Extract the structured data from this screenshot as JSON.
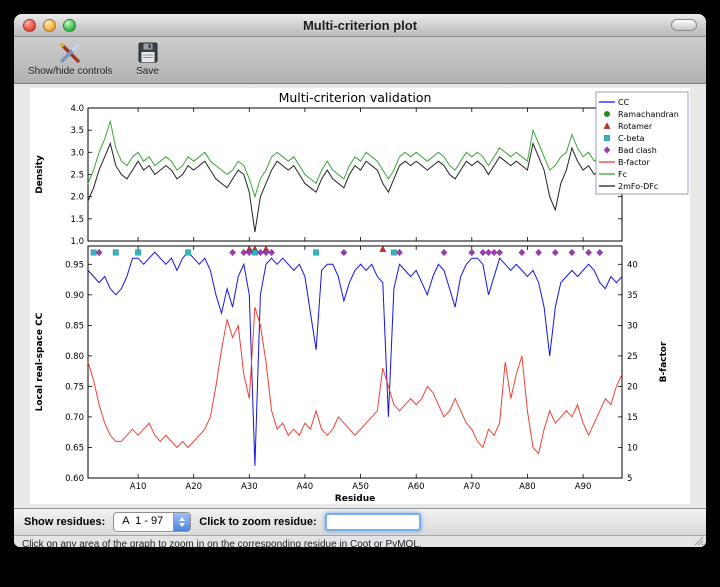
{
  "window": {
    "title": "Multi-criterion plot"
  },
  "toolbar": {
    "buttons": [
      {
        "label": "Show/hide controls",
        "icon": "tools-icon"
      },
      {
        "label": "Save",
        "icon": "save-icon"
      }
    ]
  },
  "controls": {
    "show_residues_label": "Show residues:",
    "residue_range_value": "A  1 - 97",
    "zoom_label": "Click to zoom residue:",
    "zoom_input_value": ""
  },
  "status_bar": "Click on any area of the graph to zoom in on the corresponding residue in Coot or PyMOL.",
  "chart_data": {
    "type": "line",
    "title": "Multi-criterion validation",
    "xlabel": "Residue",
    "x_range": [
      1,
      97
    ],
    "x_tick_residues": [
      10,
      20,
      30,
      40,
      50,
      60,
      70,
      80,
      90
    ],
    "x_ticks": [
      "A10",
      "A20",
      "A30",
      "A40",
      "A50",
      "A60",
      "A70",
      "A80",
      "A90"
    ],
    "grid": false,
    "legend_position": "upper right",
    "legend": [
      {
        "label": "CC",
        "type": "line",
        "color": "#1414e0"
      },
      {
        "label": "Ramachandran",
        "type": "circle",
        "color": "#1e8c1e"
      },
      {
        "label": "Rotamer",
        "type": "triangle",
        "color": "#cc2a1e"
      },
      {
        "label": "C-beta",
        "type": "square",
        "color": "#2fb6c0"
      },
      {
        "label": "Bad clash",
        "type": "diamond",
        "color": "#993cb5"
      },
      {
        "label": "B-factor",
        "type": "line",
        "color": "#ef4135"
      },
      {
        "label": "Fc",
        "type": "line",
        "color": "#3ca53c"
      },
      {
        "label": "2mFo-DFc",
        "type": "line",
        "color": "#222222"
      }
    ],
    "top_plot": {
      "ylabel": "Density",
      "ylim": [
        1.0,
        4.0
      ],
      "yticks": [
        1.0,
        1.5,
        2.0,
        2.5,
        3.0,
        3.5,
        4.0
      ],
      "series": [
        {
          "name": "Fc",
          "color": "#3ca53c",
          "values": [
            2.3,
            2.6,
            3.0,
            3.3,
            3.7,
            3.1,
            2.8,
            2.7,
            2.9,
            3.0,
            2.8,
            2.9,
            2.7,
            2.8,
            2.9,
            2.8,
            2.6,
            2.7,
            2.9,
            2.8,
            2.9,
            3.0,
            2.8,
            2.7,
            2.6,
            2.5,
            2.6,
            2.8,
            2.7,
            2.4,
            2.0,
            2.4,
            2.6,
            2.9,
            3.0,
            2.9,
            2.8,
            2.9,
            2.7,
            2.5,
            2.4,
            2.3,
            2.6,
            2.8,
            2.6,
            2.5,
            2.4,
            2.7,
            2.9,
            2.8,
            3.0,
            2.9,
            2.8,
            2.6,
            2.4,
            2.6,
            2.9,
            3.0,
            2.9,
            3.0,
            2.9,
            2.8,
            2.9,
            3.0,
            2.9,
            2.7,
            2.6,
            2.8,
            3.0,
            2.9,
            3.0,
            2.9,
            2.7,
            2.9,
            3.1,
            3.0,
            2.9,
            3.0,
            2.9,
            2.8,
            3.5,
            3.2,
            2.9,
            2.6,
            2.7,
            2.9,
            3.0,
            3.4,
            3.1,
            2.9,
            3.0,
            2.8,
            2.9,
            2.5,
            2.8,
            3.3,
            3.2
          ]
        },
        {
          "name": "2mFo-DFc",
          "color": "#222222",
          "values": [
            1.9,
            2.2,
            2.6,
            2.9,
            3.2,
            2.7,
            2.5,
            2.4,
            2.6,
            2.8,
            2.6,
            2.7,
            2.5,
            2.6,
            2.7,
            2.6,
            2.4,
            2.5,
            2.7,
            2.6,
            2.7,
            2.8,
            2.6,
            2.4,
            2.3,
            2.2,
            2.4,
            2.6,
            2.5,
            2.1,
            1.2,
            2.0,
            2.3,
            2.6,
            2.8,
            2.7,
            2.6,
            2.7,
            2.5,
            2.3,
            2.2,
            2.1,
            2.4,
            2.6,
            2.4,
            2.3,
            2.2,
            2.5,
            2.7,
            2.6,
            2.8,
            2.7,
            2.6,
            2.3,
            2.1,
            2.4,
            2.7,
            2.8,
            2.7,
            2.8,
            2.7,
            2.6,
            2.7,
            2.8,
            2.7,
            2.5,
            2.4,
            2.6,
            2.8,
            2.7,
            2.8,
            2.7,
            2.5,
            2.7,
            2.9,
            2.8,
            2.7,
            2.8,
            2.7,
            2.6,
            3.2,
            2.9,
            2.6,
            2.0,
            1.7,
            2.3,
            2.6,
            3.1,
            2.8,
            2.6,
            2.7,
            2.5,
            2.6,
            2.2,
            2.5,
            3.0,
            2.9
          ]
        }
      ]
    },
    "bottom_plot": {
      "ylabel_left": "Local real-space CC",
      "ylabel_right": "B-factor",
      "ylim_left": [
        0.6,
        0.98
      ],
      "yticks_left": [
        0.6,
        0.65,
        0.7,
        0.75,
        0.8,
        0.85,
        0.9,
        0.95
      ],
      "ylim_right": [
        5,
        43
      ],
      "yticks_right": [
        5,
        10,
        15,
        20,
        25,
        30,
        35,
        40
      ],
      "series": [
        {
          "name": "CC",
          "axis": "left",
          "color": "#1414e0",
          "values": [
            0.94,
            0.93,
            0.92,
            0.93,
            0.91,
            0.9,
            0.91,
            0.93,
            0.96,
            0.96,
            0.95,
            0.96,
            0.97,
            0.96,
            0.95,
            0.96,
            0.94,
            0.96,
            0.97,
            0.96,
            0.95,
            0.96,
            0.94,
            0.9,
            0.87,
            0.91,
            0.88,
            0.93,
            0.95,
            0.9,
            0.62,
            0.9,
            0.95,
            0.96,
            0.95,
            0.96,
            0.95,
            0.94,
            0.95,
            0.93,
            0.87,
            0.81,
            0.94,
            0.95,
            0.95,
            0.93,
            0.89,
            0.92,
            0.94,
            0.95,
            0.94,
            0.95,
            0.93,
            0.92,
            0.7,
            0.91,
            0.95,
            0.94,
            0.93,
            0.94,
            0.92,
            0.9,
            0.93,
            0.95,
            0.94,
            0.91,
            0.88,
            0.93,
            0.95,
            0.96,
            0.96,
            0.95,
            0.9,
            0.93,
            0.96,
            0.95,
            0.94,
            0.95,
            0.94,
            0.93,
            0.94,
            0.92,
            0.88,
            0.8,
            0.88,
            0.92,
            0.93,
            0.94,
            0.93,
            0.94,
            0.95,
            0.94,
            0.92,
            0.91,
            0.93,
            0.92,
            0.93
          ]
        },
        {
          "name": "B-factor",
          "axis": "right",
          "color": "#ef4135",
          "values": [
            24,
            21,
            17,
            14,
            12,
            11,
            11,
            12,
            13,
            12,
            13,
            14,
            12,
            11,
            12,
            11,
            10,
            11,
            10,
            11,
            12,
            13,
            15,
            20,
            26,
            31,
            28,
            30,
            22,
            18,
            33,
            30,
            24,
            16,
            13,
            14,
            12,
            13,
            12,
            14,
            13,
            16,
            13,
            12,
            13,
            15,
            14,
            13,
            12,
            13,
            14,
            15,
            16,
            23,
            20,
            17,
            16,
            17,
            18,
            17,
            18,
            20,
            19,
            17,
            15,
            16,
            18,
            16,
            14,
            13,
            11,
            10,
            13,
            12,
            14,
            24,
            18,
            22,
            25,
            16,
            10,
            9,
            13,
            16,
            14,
            15,
            16,
            15,
            17,
            14,
            12,
            14,
            16,
            18,
            17,
            20,
            22
          ]
        }
      ],
      "markers": [
        {
          "name": "Ramachandran",
          "shape": "circle",
          "color": "#1e8c1e",
          "residues": []
        },
        {
          "name": "Rotamer",
          "shape": "triangle",
          "color": "#cc2a1e",
          "residues": [
            30,
            31,
            33,
            54
          ]
        },
        {
          "name": "C-beta",
          "shape": "square",
          "color": "#2fb6c0",
          "residues": [
            2,
            6,
            10,
            19,
            31,
            42,
            56
          ]
        },
        {
          "name": "Bad clash",
          "shape": "diamond",
          "color": "#993cb5",
          "residues": [
            3,
            27,
            29,
            30,
            32,
            33,
            34,
            47,
            57,
            65,
            70,
            72,
            73,
            74,
            75,
            79,
            82,
            85,
            88,
            91,
            93
          ]
        }
      ]
    }
  }
}
